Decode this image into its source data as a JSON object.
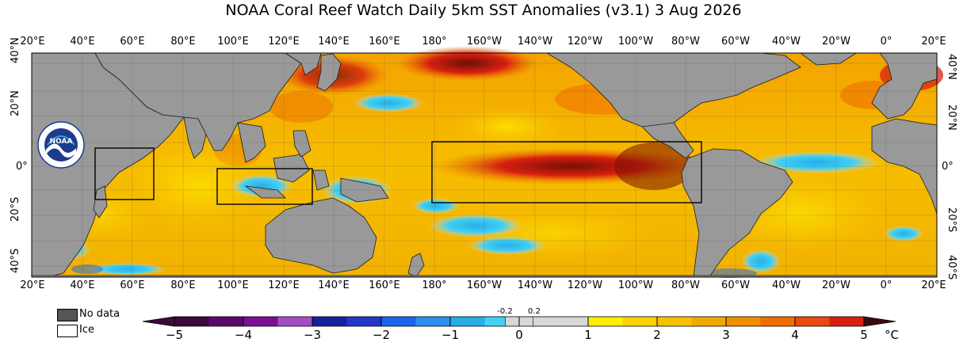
{
  "title": "NOAA Coral Reef Watch Daily 5km SST Anomalies  (v3.1)    3 Aug 2026",
  "lon_ticks": [
    "20°E",
    "40°E",
    "60°E",
    "80°E",
    "100°E",
    "120°E",
    "140°E",
    "160°E",
    "180°",
    "160°W",
    "140°W",
    "120°W",
    "100°W",
    "80°W",
    "60°W",
    "40°W",
    "20°W",
    "0°",
    "20°E"
  ],
  "lat_ticks": [
    "40°N",
    "20°N",
    "0°",
    "20°S",
    "40°S"
  ],
  "legend": {
    "no_data": "No data",
    "ice": "Ice"
  },
  "colorbar": {
    "unit": "°C",
    "ticks": [
      "−5",
      "−4",
      "−3",
      "−2",
      "−1",
      "0",
      "1",
      "2",
      "3",
      "4",
      "5"
    ],
    "small_ticks": [
      "-0.2",
      "0.2"
    ],
    "colors": [
      "#3b0a3a",
      "#5a0a6a",
      "#7b0f96",
      "#a24fc2",
      "#15229e",
      "#2536c8",
      "#1966e8",
      "#2f8ff0",
      "#27aee8",
      "#42d0f4",
      "#d8d8d8",
      "#d8d8d8",
      "#ffee00",
      "#ffd200",
      "#f6c200",
      "#f2a800",
      "#f08d00",
      "#ee6e00",
      "#e84a10",
      "#d92010",
      "#a81204",
      "#7a0e02"
    ]
  },
  "logo": "NOAA",
  "boxes": [
    "Western Indian Ocean box",
    "Indonesian seas box",
    "Nino 3.4 box"
  ]
}
